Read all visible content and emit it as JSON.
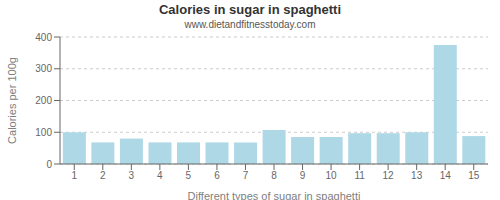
{
  "chart_data": {
    "type": "bar",
    "title": "Calories in sugar in spaghetti",
    "subtitle": "www.dietandfitnesstoday.com",
    "xlabel": "Different types of sugar in spaghetti",
    "ylabel": "Calories per 100g",
    "categories": [
      1,
      2,
      3,
      4,
      5,
      6,
      7,
      8,
      9,
      10,
      11,
      12,
      13,
      14,
      15
    ],
    "values": [
      100,
      68,
      80,
      68,
      68,
      68,
      68,
      107,
      85,
      85,
      97,
      97,
      100,
      375,
      88
    ],
    "color": "#aed8e6",
    "ylim": [
      0,
      400
    ],
    "yticks": [
      0,
      100,
      200,
      300,
      400
    ],
    "grid": true
  }
}
